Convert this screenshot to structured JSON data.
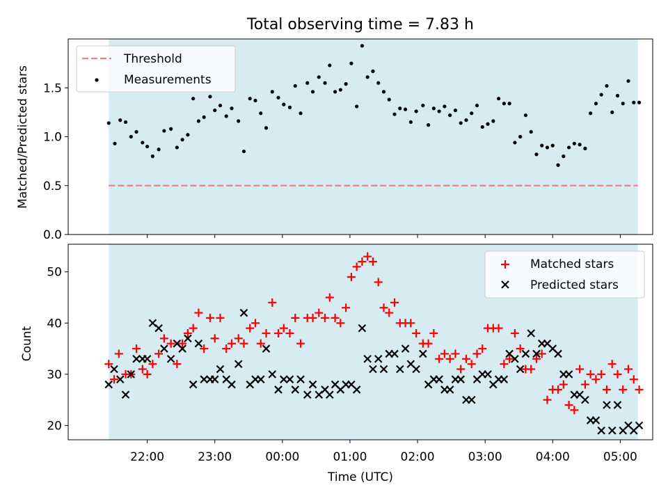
{
  "chart_data": [
    {
      "type": "scatter",
      "title": "Total observing time = 7.83 h",
      "xlabel": "",
      "ylabel": "Matched/Predicted stars",
      "ylim": [
        0,
        2.0
      ],
      "yticks": [
        0.0,
        0.5,
        1.0,
        1.5
      ],
      "ytick_labels": [
        "0.0",
        "0.5",
        "1.0",
        "1.5"
      ],
      "xlim_hours": [
        20.83,
        29.48
      ],
      "xticks_hours": [
        22,
        23,
        24,
        25,
        26,
        27,
        28,
        29
      ],
      "shaded_span_hours": [
        21.43,
        29.26
      ],
      "shade_color": "#add8e6",
      "legend_position": "upper left",
      "threshold": {
        "name": "Threshold",
        "value": 0.5,
        "x_range_hours": [
          21.43,
          29.26
        ],
        "color": "#f08080"
      },
      "series": [
        {
          "name": "Measurements",
          "color": "#000000",
          "x_hours": [
            21.43,
            21.52,
            21.6,
            21.68,
            21.76,
            21.84,
            21.93,
            22.0,
            22.08,
            22.17,
            22.25,
            22.35,
            22.44,
            22.52,
            22.6,
            22.68,
            22.76,
            22.84,
            22.93,
            23.0,
            23.08,
            23.17,
            23.25,
            23.35,
            23.43,
            23.52,
            23.6,
            23.68,
            23.76,
            23.85,
            23.94,
            24.02,
            24.11,
            24.19,
            24.27,
            24.37,
            24.45,
            24.54,
            24.63,
            24.7,
            24.78,
            24.86,
            24.94,
            25.02,
            25.1,
            25.18,
            25.26,
            25.34,
            25.42,
            25.5,
            25.58,
            25.66,
            25.74,
            25.82,
            25.9,
            25.98,
            26.08,
            26.16,
            26.24,
            26.32,
            26.4,
            26.48,
            26.56,
            26.64,
            26.72,
            26.8,
            26.88,
            26.96,
            27.04,
            27.12,
            27.2,
            27.28,
            27.36,
            27.44,
            27.52,
            27.6,
            27.68,
            27.76,
            27.84,
            27.92,
            28.0,
            28.08,
            28.16,
            28.24,
            28.32,
            28.4,
            28.48,
            28.56,
            28.64,
            28.72,
            28.8,
            28.88,
            28.96,
            29.04,
            29.12,
            29.2,
            29.28
          ],
          "y": [
            1.14,
            0.93,
            1.17,
            1.15,
            1.0,
            1.05,
            0.94,
            0.9,
            0.8,
            0.87,
            1.06,
            1.08,
            0.89,
            0.97,
            1.02,
            1.39,
            1.16,
            1.2,
            1.41,
            1.27,
            1.32,
            1.21,
            1.29,
            1.16,
            0.85,
            1.39,
            1.37,
            1.24,
            1.09,
            1.46,
            1.4,
            1.33,
            1.3,
            1.52,
            1.24,
            1.55,
            1.46,
            1.61,
            1.55,
            1.73,
            1.46,
            1.48,
            1.54,
            1.75,
            1.31,
            1.93,
            1.61,
            1.67,
            1.55,
            1.46,
            1.38,
            1.23,
            1.29,
            1.28,
            1.15,
            1.26,
            1.32,
            1.12,
            1.29,
            1.26,
            1.31,
            1.22,
            1.27,
            1.14,
            1.17,
            1.24,
            1.32,
            1.1,
            1.13,
            1.16,
            1.39,
            1.34,
            1.34,
            0.94,
            1.0,
            1.22,
            1.05,
            0.82,
            0.91,
            0.89,
            0.91,
            0.71,
            0.8,
            0.89,
            0.93,
            0.92,
            0.88,
            1.24,
            1.34,
            1.43,
            1.52,
            1.25,
            1.42,
            1.34,
            1.57,
            1.35,
            1.35
          ]
        }
      ]
    },
    {
      "type": "scatter",
      "title": "",
      "xlabel": "Time (UTC)",
      "ylabel": "Count",
      "ylim": [
        17.2,
        55.4
      ],
      "yticks": [
        20,
        30,
        40,
        50
      ],
      "ytick_labels": [
        "20",
        "30",
        "40",
        "50"
      ],
      "xlim_hours": [
        20.83,
        29.48
      ],
      "xticks_hours": [
        22,
        23,
        24,
        25,
        26,
        27,
        28,
        29
      ],
      "xtick_labels": [
        "22:00",
        "23:00",
        "00:00",
        "01:00",
        "02:00",
        "03:00",
        "04:00",
        "05:00"
      ],
      "shaded_span_hours": [
        21.43,
        29.26
      ],
      "shade_color": "#add8e6",
      "legend_position": "upper right",
      "series": [
        {
          "name": "Matched stars",
          "marker": "+",
          "color": "#ff0000",
          "x_hours": [
            21.43,
            21.51,
            21.58,
            21.68,
            21.76,
            21.84,
            21.93,
            22.0,
            22.08,
            22.17,
            22.25,
            22.35,
            22.44,
            22.52,
            22.6,
            22.68,
            22.76,
            22.84,
            22.93,
            23.0,
            23.08,
            23.17,
            23.25,
            23.35,
            23.43,
            23.52,
            23.6,
            23.68,
            23.76,
            23.85,
            23.94,
            24.02,
            24.11,
            24.19,
            24.27,
            24.37,
            24.45,
            24.54,
            24.63,
            24.7,
            24.78,
            24.86,
            24.94,
            25.02,
            25.1,
            25.18,
            25.26,
            25.34,
            25.42,
            25.5,
            25.58,
            25.66,
            25.74,
            25.82,
            25.9,
            25.98,
            26.08,
            26.16,
            26.24,
            26.32,
            26.4,
            26.48,
            26.56,
            26.64,
            26.72,
            26.8,
            26.88,
            26.96,
            27.04,
            27.12,
            27.2,
            27.28,
            27.36,
            27.44,
            27.52,
            27.6,
            27.68,
            27.76,
            27.84,
            27.92,
            28.0,
            28.08,
            28.16,
            28.24,
            28.32,
            28.4,
            28.48,
            28.56,
            28.64,
            28.72,
            28.8,
            28.88,
            28.96,
            29.04,
            29.12,
            29.2,
            29.28
          ],
          "y": [
            32,
            29,
            34,
            30,
            30,
            35,
            31,
            30,
            32,
            34,
            37,
            36,
            32,
            36,
            38,
            39,
            42,
            35,
            41,
            37,
            41,
            35,
            36,
            37,
            36,
            39,
            40,
            36,
            38,
            44,
            38,
            39,
            38,
            41,
            36,
            41,
            41,
            42,
            41,
            45,
            41,
            40,
            43,
            49,
            51,
            52,
            53,
            52,
            48,
            43,
            42,
            44,
            40,
            40,
            40,
            38,
            36,
            36,
            38,
            33,
            34,
            33,
            34,
            31,
            33,
            32,
            34,
            35,
            39,
            39,
            39,
            32,
            33,
            38,
            35,
            31,
            31,
            33,
            34,
            25,
            27,
            27,
            28,
            24,
            23,
            31,
            28,
            30,
            29,
            30,
            27,
            32,
            30,
            27,
            31,
            29,
            27
          ]
        },
        {
          "name": "Predicted stars",
          "marker": "x",
          "color": "#000000",
          "x_hours": [
            21.43,
            21.51,
            21.6,
            21.68,
            21.76,
            21.84,
            21.93,
            22.0,
            22.08,
            22.17,
            22.25,
            22.35,
            22.44,
            22.52,
            22.6,
            22.68,
            22.76,
            22.84,
            22.93,
            23.0,
            23.08,
            23.17,
            23.25,
            23.35,
            23.43,
            23.52,
            23.6,
            23.68,
            23.76,
            23.85,
            23.94,
            24.02,
            24.11,
            24.19,
            24.27,
            24.37,
            24.45,
            24.54,
            24.63,
            24.7,
            24.78,
            24.86,
            24.94,
            25.02,
            25.1,
            25.18,
            25.26,
            25.34,
            25.42,
            25.5,
            25.58,
            25.66,
            25.74,
            25.82,
            25.9,
            25.98,
            26.08,
            26.16,
            26.24,
            26.32,
            26.4,
            26.48,
            26.56,
            26.64,
            26.72,
            26.8,
            26.88,
            26.96,
            27.04,
            27.12,
            27.2,
            27.28,
            27.36,
            27.44,
            27.52,
            27.6,
            27.68,
            27.76,
            27.84,
            27.92,
            28.0,
            28.08,
            28.16,
            28.24,
            28.32,
            28.4,
            28.48,
            28.56,
            28.64,
            28.72,
            28.8,
            28.88,
            28.96,
            29.04,
            29.12,
            29.2,
            29.28
          ],
          "y": [
            28,
            31,
            29,
            26,
            30,
            33,
            33,
            33,
            40,
            39,
            35,
            33,
            36,
            35,
            37,
            28,
            36,
            29,
            29,
            29,
            31,
            29,
            28,
            32,
            42,
            28,
            29,
            29,
            35,
            30,
            27,
            29,
            29,
            27,
            29,
            26,
            28,
            26,
            27,
            26,
            28,
            27,
            28,
            28,
            27,
            39,
            33,
            31,
            33,
            31,
            34,
            34,
            31,
            35,
            32,
            31,
            34,
            28,
            29,
            29,
            27,
            27,
            29,
            29,
            25,
            25,
            29,
            30,
            30,
            28,
            29,
            29,
            34,
            33,
            31,
            34,
            38,
            34,
            36,
            36,
            35,
            34,
            30,
            30,
            26,
            26,
            25,
            21,
            21,
            19,
            24,
            19,
            24,
            19,
            20,
            19,
            20
          ]
        }
      ]
    }
  ]
}
